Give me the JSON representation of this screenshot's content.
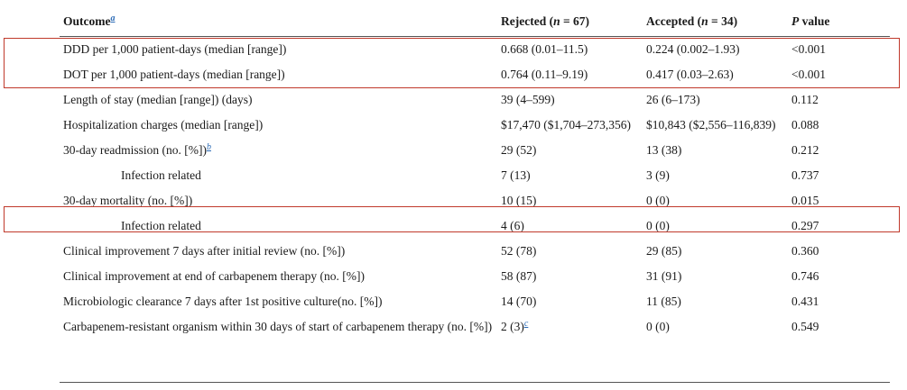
{
  "table": {
    "headers": {
      "outcome": "Outcome",
      "outcome_footnote": "a",
      "rejected_prefix": "Rejected (",
      "rejected_n": "n",
      "rejected_suffix": " = 67)",
      "accepted_prefix": "Accepted (",
      "accepted_n": "n",
      "accepted_suffix": " = 34)",
      "pvalue_p": "P",
      "pvalue_rest": " value"
    },
    "rows": [
      {
        "outcome": "DDD per 1,000 patient-days (median [range])",
        "rejected": "0.668 (0.01–11.5)",
        "accepted": "0.224 (0.002–1.93)",
        "p": "<0.001"
      },
      {
        "outcome": "DOT per 1,000 patient-days (median [range])",
        "rejected": "0.764 (0.11–9.19)",
        "accepted": "0.417 (0.03–2.63)",
        "p": "<0.001"
      },
      {
        "outcome": "Length of stay (median [range]) (days)",
        "rejected": "39 (4–599)",
        "accepted": "26 (6–173)",
        "p": "0.112"
      },
      {
        "outcome": "Hospitalization charges (median [range])",
        "rejected": "$17,470 ($1,704–273,356)",
        "accepted": "$10,843 ($2,556–116,839)",
        "p": "0.088"
      },
      {
        "outcome": "30-day readmission (no. [%])",
        "outcome_footnote": "b",
        "rejected": "29 (52)",
        "accepted": "13 (38)",
        "p": "0.212"
      },
      {
        "outcome": "Infection related",
        "rejected": "7 (13)",
        "accepted": "3 (9)",
        "p": "0.737"
      },
      {
        "outcome": "30-day mortality (no. [%])",
        "rejected": "10 (15)",
        "accepted": "0 (0)",
        "p": "0.015"
      },
      {
        "outcome": "Infection related",
        "rejected": "4 (6)",
        "accepted": "0 (0)",
        "p": "0.297"
      },
      {
        "outcome": "Clinical improvement 7 days after initial review (no. [%])",
        "rejected": "52 (78)",
        "accepted": "29 (85)",
        "p": "0.360"
      },
      {
        "outcome": "Clinical improvement at end of carbapenem therapy (no. [%])",
        "rejected": "58 (87)",
        "accepted": "31 (91)",
        "p": "0.746"
      },
      {
        "outcome": "Microbiologic clearance 7 days after 1st positive culture(no. [%])",
        "rejected": "14 (70)",
        "accepted": "11 (85)",
        "p": "0.431"
      },
      {
        "outcome": "Carbapenem-resistant organism within 30 days of start of carbapenem therapy (no. [%])",
        "rejected": "2 (3)",
        "rejected_footnote": "c",
        "accepted": "0 (0)",
        "p": "0.549"
      }
    ]
  },
  "colors": {
    "highlight": "#c0392b",
    "footnote_link": "#2a6ab5"
  }
}
